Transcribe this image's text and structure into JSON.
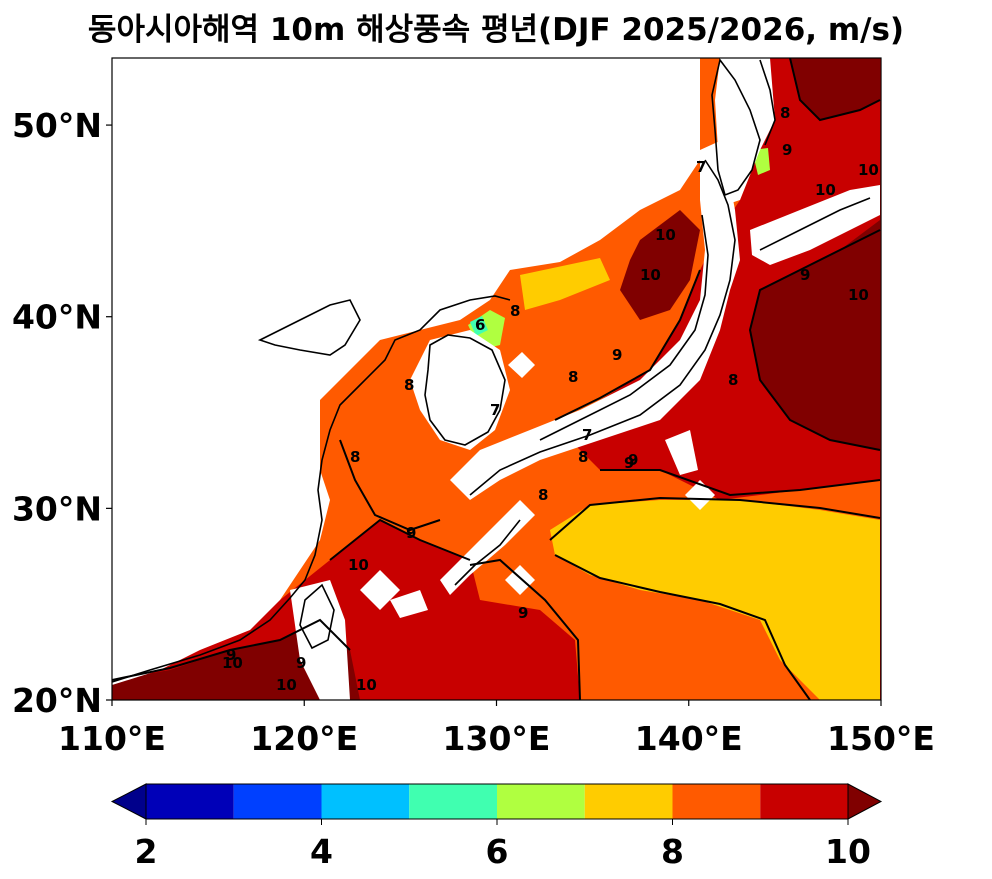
{
  "title": "동아시아해역 10m 해상풍속 평년(DJF 2025/2026, m/s)",
  "map": {
    "lon_range": [
      110,
      150
    ],
    "lat_range": [
      20,
      53.5
    ],
    "x_ticks": [
      {
        "value": 110,
        "label": "110°E"
      },
      {
        "value": 120,
        "label": "120°E"
      },
      {
        "value": 130,
        "label": "130°E"
      },
      {
        "value": 140,
        "label": "140°E"
      },
      {
        "value": 150,
        "label": "150°E"
      }
    ],
    "y_ticks": [
      {
        "value": 20,
        "label": "20°N"
      },
      {
        "value": 30,
        "label": "30°N"
      },
      {
        "value": 40,
        "label": "40°N"
      },
      {
        "value": 50,
        "label": "50°N"
      }
    ],
    "contour_labels": [
      "7",
      "8",
      "9",
      "10",
      "6"
    ]
  },
  "colorbar": {
    "levels": [
      2,
      3,
      4,
      5,
      6,
      7,
      8,
      9,
      10
    ],
    "tick_labels": [
      "2",
      "4",
      "6",
      "8",
      "10"
    ],
    "colors": [
      "#0000b8",
      "#0040ff",
      "#00c0ff",
      "#40ffb0",
      "#b0ff40",
      "#ffcc00",
      "#ff5a00",
      "#c80000"
    ],
    "under_color": "#00008b",
    "over_color": "#800000",
    "extend": "both"
  },
  "palette": {
    "c7": "#ffcc00",
    "c8": "#ff5a00",
    "c9": "#c80000",
    "c10": "#800000",
    "c6": "#b0ff40",
    "c5": "#40ffb0"
  }
}
